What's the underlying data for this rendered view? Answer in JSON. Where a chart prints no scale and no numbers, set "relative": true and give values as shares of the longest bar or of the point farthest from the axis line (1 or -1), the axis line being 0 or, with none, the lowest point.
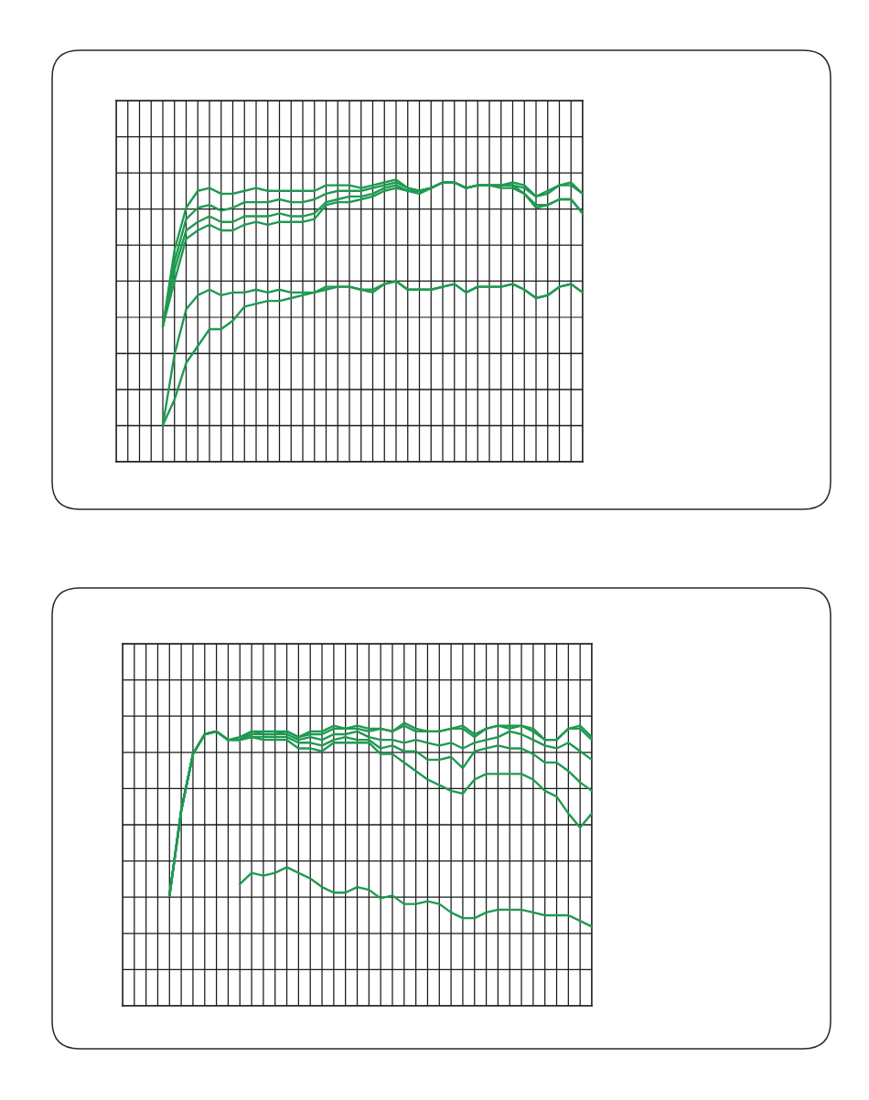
{
  "chart_data": [
    {
      "type": "line",
      "relative": true,
      "grid": true,
      "categories": [
        null,
        null,
        null,
        null,
        null,
        null,
        null,
        null,
        null,
        null,
        null,
        null,
        null,
        null,
        null,
        null,
        null,
        null,
        null,
        null,
        null,
        null,
        null,
        null,
        null,
        null,
        null,
        null,
        null,
        null,
        null,
        null,
        null,
        null,
        null,
        null,
        null,
        null,
        null,
        null,
        null
      ],
      "series": [
        {
          "color": "#1e9a50",
          "values": [
            null,
            null,
            null,
            null,
            0.48,
            0.75,
            0.9,
            0.96,
            0.97,
            0.95,
            0.95,
            0.96,
            0.97,
            0.96,
            0.96,
            0.96,
            0.96,
            0.96,
            0.98,
            0.98,
            0.98,
            0.97,
            0.98,
            0.99,
            1.0,
            0.97,
            0.96,
            0.97,
            0.99,
            0.99,
            0.97,
            0.98,
            0.98,
            0.98,
            0.99,
            0.98,
            0.94,
            0.96,
            0.98,
            0.99,
            0.95
          ]
        },
        {
          "color": "#1e9a50",
          "values": [
            null,
            null,
            null,
            null,
            0.48,
            0.71,
            0.86,
            0.9,
            0.91,
            0.89,
            0.9,
            0.92,
            0.92,
            0.92,
            0.93,
            0.92,
            0.92,
            0.93,
            0.95,
            0.96,
            0.96,
            0.96,
            0.97,
            0.98,
            0.99,
            0.97,
            0.96,
            0.97,
            0.99,
            0.99,
            0.97,
            0.98,
            0.98,
            0.98,
            0.98,
            0.97,
            0.94,
            0.95,
            0.98,
            0.98,
            0.95
          ]
        },
        {
          "color": "#1e9a50",
          "values": [
            null,
            null,
            null,
            null,
            0.48,
            0.68,
            0.82,
            0.85,
            0.87,
            0.85,
            0.85,
            0.87,
            0.87,
            0.87,
            0.88,
            0.87,
            0.87,
            0.88,
            0.92,
            0.93,
            0.94,
            0.94,
            0.95,
            0.97,
            0.98,
            0.96,
            0.96,
            0.97,
            0.99,
            0.99,
            0.97,
            0.98,
            0.98,
            0.98,
            0.98,
            0.95,
            0.91,
            0.91,
            0.93,
            0.93,
            0.88
          ]
        },
        {
          "color": "#1e9a50",
          "values": [
            null,
            null,
            null,
            null,
            0.48,
            0.64,
            0.79,
            0.82,
            0.84,
            0.82,
            0.82,
            0.84,
            0.85,
            0.84,
            0.85,
            0.85,
            0.85,
            0.86,
            0.91,
            0.92,
            0.92,
            0.93,
            0.94,
            0.96,
            0.97,
            0.96,
            0.95,
            0.97,
            0.99,
            0.99,
            0.97,
            0.98,
            0.98,
            0.97,
            0.97,
            0.95,
            0.9,
            0.91,
            0.93,
            0.93,
            0.88
          ]
        },
        {
          "color": "#1e9a50",
          "values": [
            null,
            null,
            null,
            null,
            0.13,
            0.38,
            0.54,
            0.59,
            0.61,
            0.59,
            0.6,
            0.6,
            0.61,
            0.6,
            0.61,
            0.6,
            0.6,
            0.6,
            0.62,
            0.62,
            0.62,
            0.61,
            0.61,
            0.63,
            0.64,
            0.61,
            0.61,
            0.61,
            0.62,
            0.63,
            0.6,
            0.62,
            0.62,
            0.62,
            0.63,
            0.61,
            0.58,
            0.59,
            0.62,
            0.63,
            0.6
          ]
        },
        {
          "color": "#1e9a50",
          "values": [
            null,
            null,
            null,
            null,
            0.13,
            0.22,
            0.35,
            0.41,
            0.47,
            0.47,
            0.5,
            0.55,
            0.56,
            0.57,
            0.57,
            0.58,
            0.59,
            0.6,
            0.61,
            0.62,
            0.62,
            0.61,
            0.6,
            0.63,
            0.64,
            0.61,
            0.61,
            0.61,
            0.62,
            0.63,
            0.6,
            0.62,
            0.62,
            0.62,
            0.63,
            0.61,
            0.58,
            0.59,
            0.62,
            0.63,
            0.6
          ]
        }
      ]
    },
    {
      "type": "line",
      "relative": true,
      "grid": true,
      "categories": [
        null,
        null,
        null,
        null,
        null,
        null,
        null,
        null,
        null,
        null,
        null,
        null,
        null,
        null,
        null,
        null,
        null,
        null,
        null,
        null,
        null,
        null,
        null,
        null,
        null,
        null,
        null,
        null,
        null,
        null,
        null,
        null,
        null,
        null,
        null,
        null,
        null,
        null,
        null,
        null,
        null
      ],
      "series": [
        {
          "color": "#1e9a50",
          "values": [
            null,
            null,
            null,
            null,
            0.39,
            0.69,
            0.89,
            0.96,
            0.97,
            0.94,
            0.95,
            0.97,
            0.97,
            0.97,
            0.97,
            0.95,
            0.97,
            0.97,
            0.99,
            0.98,
            0.99,
            0.98,
            0.98,
            0.97,
            1.0,
            0.98,
            0.97,
            0.97,
            0.98,
            0.99,
            0.96,
            0.98,
            0.99,
            0.99,
            0.99,
            0.98,
            0.94,
            0.94,
            0.98,
            0.99,
            0.95
          ]
        },
        {
          "color": "#1e9a50",
          "values": [
            null,
            null,
            null,
            null,
            0.39,
            0.69,
            0.89,
            0.96,
            0.97,
            0.94,
            0.94,
            0.97,
            0.96,
            0.96,
            0.97,
            0.95,
            0.96,
            0.96,
            0.98,
            0.98,
            0.98,
            0.97,
            0.98,
            0.97,
            0.99,
            0.97,
            0.97,
            0.97,
            0.98,
            0.98,
            0.95,
            0.98,
            0.99,
            0.98,
            0.99,
            0.97,
            0.94,
            0.94,
            0.98,
            0.98,
            0.94
          ]
        },
        {
          "color": "#1e9a50",
          "values": [
            null,
            null,
            null,
            null,
            0.39,
            0.69,
            0.89,
            0.96,
            0.97,
            0.94,
            0.94,
            0.96,
            0.96,
            0.96,
            0.96,
            0.94,
            0.95,
            0.94,
            0.96,
            0.96,
            0.97,
            0.95,
            0.94,
            0.94,
            0.93,
            0.94,
            0.93,
            0.92,
            0.93,
            0.91,
            0.93,
            0.94,
            0.95,
            0.97,
            0.96,
            0.94,
            0.92,
            0.91,
            0.93,
            0.9,
            0.87
          ]
        },
        {
          "color": "#1e9a50",
          "values": [
            null,
            null,
            null,
            null,
            0.39,
            0.69,
            0.89,
            0.96,
            0.97,
            0.94,
            0.94,
            0.95,
            0.95,
            0.95,
            0.95,
            0.93,
            0.93,
            0.92,
            0.94,
            0.95,
            0.94,
            0.94,
            0.91,
            0.92,
            0.9,
            0.9,
            0.87,
            0.87,
            0.88,
            0.84,
            0.9,
            0.91,
            0.92,
            0.91,
            0.91,
            0.89,
            0.86,
            0.86,
            0.83,
            0.79,
            0.76
          ]
        },
        {
          "color": "#1e9a50",
          "values": [
            null,
            null,
            null,
            null,
            0.39,
            0.69,
            0.89,
            0.96,
            0.97,
            0.94,
            0.94,
            0.95,
            0.94,
            0.94,
            0.94,
            0.91,
            0.91,
            0.9,
            0.93,
            0.93,
            0.93,
            0.93,
            0.89,
            0.89,
            0.86,
            0.83,
            0.8,
            0.78,
            0.76,
            0.75,
            0.8,
            0.82,
            0.82,
            0.82,
            0.82,
            0.8,
            0.76,
            0.74,
            0.68,
            0.63,
            0.68
          ]
        },
        {
          "color": "#1e9a50",
          "values": [
            null,
            null,
            null,
            null,
            null,
            null,
            null,
            null,
            null,
            null,
            0.43,
            0.47,
            0.46,
            0.47,
            0.49,
            0.47,
            0.45,
            0.42,
            0.4,
            0.4,
            0.42,
            0.41,
            0.38,
            0.39,
            0.36,
            0.36,
            0.37,
            0.36,
            0.33,
            0.31,
            0.31,
            0.33,
            0.34,
            0.34,
            0.34,
            0.33,
            0.32,
            0.32,
            0.32,
            0.3,
            0.28
          ]
        }
      ]
    }
  ]
}
